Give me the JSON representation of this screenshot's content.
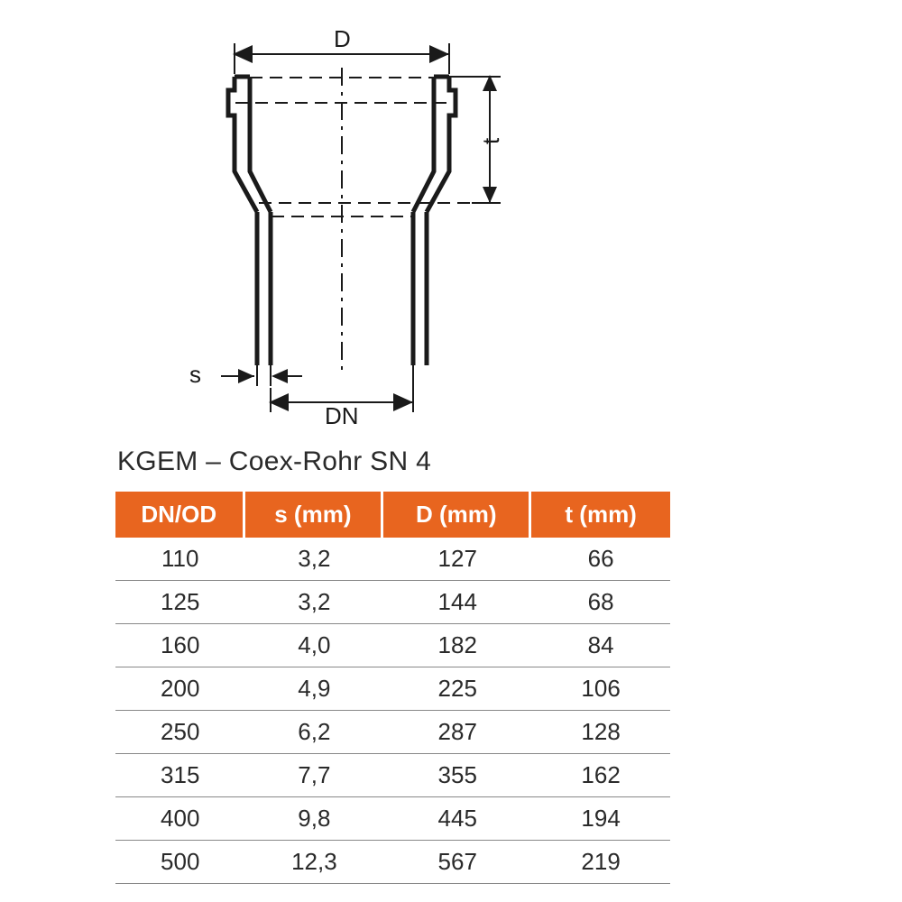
{
  "diagram": {
    "labels": {
      "D": "D",
      "t": "t",
      "s": "s",
      "DN": "DN"
    },
    "stroke": "#1a1a1a",
    "stroke_width_main": 5,
    "stroke_width_dim": 2,
    "dash_pattern": "16 8 4 8"
  },
  "title": "KGEM – Coex-Rohr SN 4",
  "table": {
    "header_bg": "#e8651f",
    "header_fg": "#ffffff",
    "row_border": "#888888",
    "text_color": "#2a2a2a",
    "columns": [
      "DN/OD",
      "s (mm)",
      "D (mm)",
      "t (mm)"
    ],
    "rows": [
      [
        "110",
        "3,2",
        "127",
        "66"
      ],
      [
        "125",
        "3,2",
        "144",
        "68"
      ],
      [
        "160",
        "4,0",
        "182",
        "84"
      ],
      [
        "200",
        "4,9",
        "225",
        "106"
      ],
      [
        "250",
        "6,2",
        "287",
        "128"
      ],
      [
        "315",
        "7,7",
        "355",
        "162"
      ],
      [
        "400",
        "9,8",
        "445",
        "194"
      ],
      [
        "500",
        "12,3",
        "567",
        "219"
      ]
    ]
  }
}
